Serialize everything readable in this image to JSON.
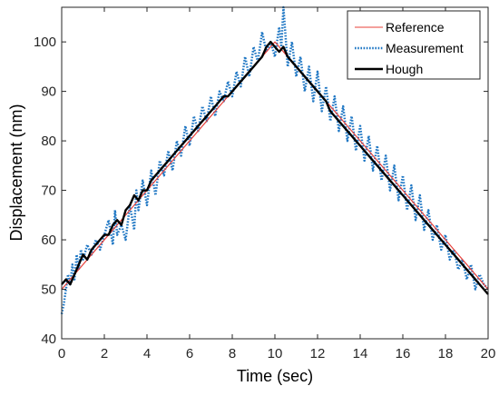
{
  "chart_data": {
    "type": "line",
    "title": "",
    "xlabel": "Time (sec)",
    "ylabel": "Displacement (nm)",
    "xlim": [
      0,
      20
    ],
    "ylim": [
      40,
      107
    ],
    "x_ticks": [
      0,
      2,
      4,
      6,
      8,
      10,
      12,
      14,
      16,
      18,
      20
    ],
    "y_ticks": [
      40,
      50,
      60,
      70,
      80,
      90,
      100
    ],
    "x_tick_labels": [
      "0",
      "2",
      "4",
      "6",
      "8",
      "10",
      "12",
      "14",
      "16",
      "18",
      "20"
    ],
    "y_tick_labels": [
      "40",
      "50",
      "60",
      "70",
      "80",
      "90",
      "100"
    ],
    "grid": false,
    "legend_position": "top-right",
    "series": [
      {
        "name": "Reference",
        "color": "#e8403a",
        "style": "solid",
        "x": [
          0,
          10,
          20
        ],
        "y": [
          50,
          100,
          50
        ]
      },
      {
        "name": "Measurement",
        "color": "#1f77c4",
        "style": "dotted",
        "x": [
          0,
          0.1,
          0.2,
          0.3,
          0.4,
          0.5,
          0.6,
          0.7,
          0.8,
          0.9,
          1.0,
          1.2,
          1.4,
          1.6,
          1.8,
          2.0,
          2.2,
          2.4,
          2.5,
          2.6,
          2.8,
          3.0,
          3.2,
          3.4,
          3.5,
          3.6,
          3.8,
          4.0,
          4.2,
          4.4,
          4.6,
          4.8,
          5.0,
          5.2,
          5.4,
          5.6,
          5.8,
          6.0,
          6.2,
          6.4,
          6.6,
          6.8,
          7.0,
          7.2,
          7.4,
          7.6,
          7.8,
          8.0,
          8.2,
          8.4,
          8.6,
          8.8,
          9.0,
          9.2,
          9.4,
          9.6,
          9.8,
          10.0,
          10.2,
          10.3,
          10.4,
          10.5,
          10.6,
          10.8,
          11.0,
          11.2,
          11.4,
          11.6,
          11.8,
          12.0,
          12.2,
          12.4,
          12.6,
          12.8,
          13.0,
          13.2,
          13.4,
          13.6,
          13.8,
          14.0,
          14.2,
          14.4,
          14.6,
          14.8,
          15.0,
          15.2,
          15.4,
          15.6,
          15.8,
          16.0,
          16.2,
          16.4,
          16.6,
          16.8,
          17.0,
          17.2,
          17.4,
          17.6,
          17.8,
          18.0,
          18.2,
          18.4,
          18.6,
          18.8,
          19.0,
          19.2,
          19.4,
          19.6,
          19.8,
          20.0
        ],
        "y": [
          45,
          47,
          50,
          53,
          51,
          55,
          52,
          57,
          54,
          58,
          56,
          59,
          57,
          60,
          58,
          61,
          64,
          59,
          66,
          61,
          63,
          60,
          67,
          62,
          70,
          66,
          72,
          67,
          74,
          69,
          76,
          73,
          78,
          74,
          80,
          77,
          83,
          79,
          85,
          82,
          87,
          84,
          89,
          85,
          90,
          88,
          92,
          89,
          94,
          91,
          97,
          93,
          99,
          96,
          102,
          98,
          100,
          97,
          103,
          99,
          107,
          101,
          95,
          100,
          93,
          97,
          90,
          95,
          88,
          94,
          86,
          91,
          84,
          89,
          82,
          87,
          80,
          85,
          78,
          83,
          76,
          81,
          74,
          79,
          72,
          77,
          70,
          75,
          68,
          73,
          66,
          71,
          64,
          69,
          62,
          66,
          60,
          63,
          58,
          61,
          56,
          58,
          54,
          56,
          52,
          55,
          50,
          53,
          51,
          50
        ]
      },
      {
        "name": "Hough",
        "color": "#000000",
        "style": "solid",
        "x": [
          0,
          0.2,
          0.4,
          0.6,
          0.8,
          1.0,
          1.2,
          1.4,
          1.6,
          1.8,
          2.0,
          2.2,
          2.4,
          2.6,
          2.8,
          3.0,
          3.2,
          3.4,
          3.6,
          3.8,
          4.0,
          4.2,
          4.4,
          4.6,
          4.8,
          5.0,
          5.2,
          5.4,
          5.6,
          5.8,
          6.0,
          6.2,
          6.4,
          6.6,
          6.8,
          7.0,
          7.2,
          7.4,
          7.6,
          7.8,
          8.0,
          8.2,
          8.4,
          8.6,
          8.8,
          9.0,
          9.2,
          9.4,
          9.6,
          9.8,
          10.0,
          10.2,
          10.4,
          10.6,
          10.8,
          11.0,
          11.2,
          11.4,
          11.6,
          11.8,
          12.0,
          12.2,
          12.4,
          12.6,
          12.8,
          13.0,
          13.2,
          13.4,
          13.6,
          13.8,
          14.0,
          14.2,
          14.4,
          14.6,
          14.8,
          15.0,
          15.2,
          15.4,
          15.6,
          15.8,
          16.0,
          16.2,
          16.4,
          16.6,
          16.8,
          17.0,
          17.2,
          17.4,
          17.6,
          17.8,
          18.0,
          18.2,
          18.4,
          18.6,
          18.8,
          19.0,
          19.2,
          19.4,
          19.6,
          19.8,
          20.0
        ],
        "y": [
          51,
          52,
          51,
          53,
          55,
          57,
          56,
          58,
          59,
          60,
          61,
          61,
          63,
          64,
          63,
          66,
          67,
          69,
          68,
          70,
          70,
          72,
          73,
          74,
          75,
          76,
          77,
          78,
          79,
          80,
          81,
          82,
          83,
          84,
          85,
          86,
          87,
          88,
          89,
          89,
          90,
          91,
          92,
          93,
          94,
          95,
          96,
          97,
          99,
          100,
          99,
          98,
          99,
          97,
          96,
          95,
          94,
          93,
          92,
          91,
          90,
          89,
          88,
          86,
          85,
          84,
          83,
          82,
          81,
          80,
          79,
          78,
          77,
          76,
          75,
          74,
          73,
          72,
          71,
          70,
          69,
          68,
          67,
          66,
          65,
          64,
          63,
          62,
          61,
          60,
          59,
          58,
          57,
          56,
          55,
          54,
          53,
          52,
          51,
          50,
          49
        ]
      }
    ]
  }
}
